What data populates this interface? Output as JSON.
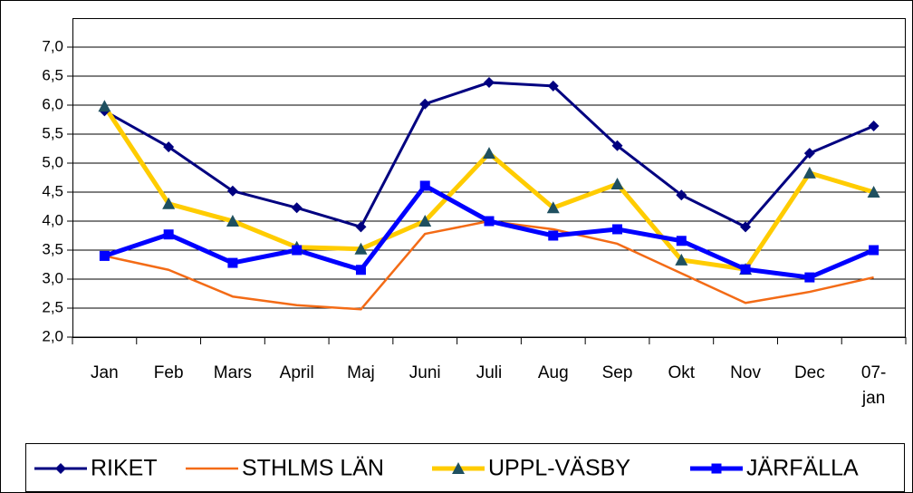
{
  "chart_data": {
    "type": "line",
    "categories": [
      "Jan",
      "Feb",
      "Mars",
      "April",
      "Maj",
      "Juni",
      "Juli",
      "Aug",
      "Sep",
      "Okt",
      "Nov",
      "Dec",
      "07-jan"
    ],
    "series": [
      {
        "name": "RIKET",
        "color": "#000080",
        "marker": "diamond",
        "marker_color": "#000080",
        "values": [
          5.9,
          5.28,
          4.52,
          4.23,
          3.9,
          6.02,
          6.39,
          6.33,
          5.3,
          4.45,
          3.9,
          5.17,
          5.64
        ]
      },
      {
        "name": "STHLMS LÄN",
        "color": "#f36b16",
        "marker": "none",
        "marker_color": "#f36b16",
        "values": [
          3.4,
          3.16,
          2.7,
          2.55,
          2.48,
          3.78,
          4.0,
          3.86,
          3.61,
          3.1,
          2.59,
          2.78,
          3.03
        ]
      },
      {
        "name": "UPPL-VÄSBY",
        "color": "#ffcc00",
        "marker": "triangle",
        "marker_color": "#1f5060",
        "values": [
          5.98,
          4.3,
          4.0,
          3.55,
          3.52,
          4.0,
          5.17,
          4.23,
          4.64,
          3.33,
          3.17,
          4.83,
          4.5
        ]
      },
      {
        "name": "JÄRFÄLLA",
        "color": "#0000ff",
        "marker": "square",
        "marker_color": "#0000ff",
        "values": [
          3.4,
          3.77,
          3.28,
          3.5,
          3.16,
          4.61,
          4.0,
          3.75,
          3.86,
          3.66,
          3.17,
          3.03,
          3.5
        ]
      }
    ],
    "ylim": [
      2,
      7
    ],
    "yticks": [
      {
        "value": 2,
        "label": "2,0"
      },
      {
        "value": 2.5,
        "label": "2,5"
      },
      {
        "value": 3,
        "label": "3,0"
      },
      {
        "value": 3.5,
        "label": "3,5"
      },
      {
        "value": 4,
        "label": "4,0"
      },
      {
        "value": 4.5,
        "label": "4,5"
      },
      {
        "value": 5,
        "label": "5,0"
      },
      {
        "value": 5.5,
        "label": "5,5"
      },
      {
        "value": 6,
        "label": "6,0"
      },
      {
        "value": 6.5,
        "label": "6,5"
      },
      {
        "value": 7,
        "label": "7,0"
      }
    ],
    "grid": true,
    "legend": "bottom"
  }
}
